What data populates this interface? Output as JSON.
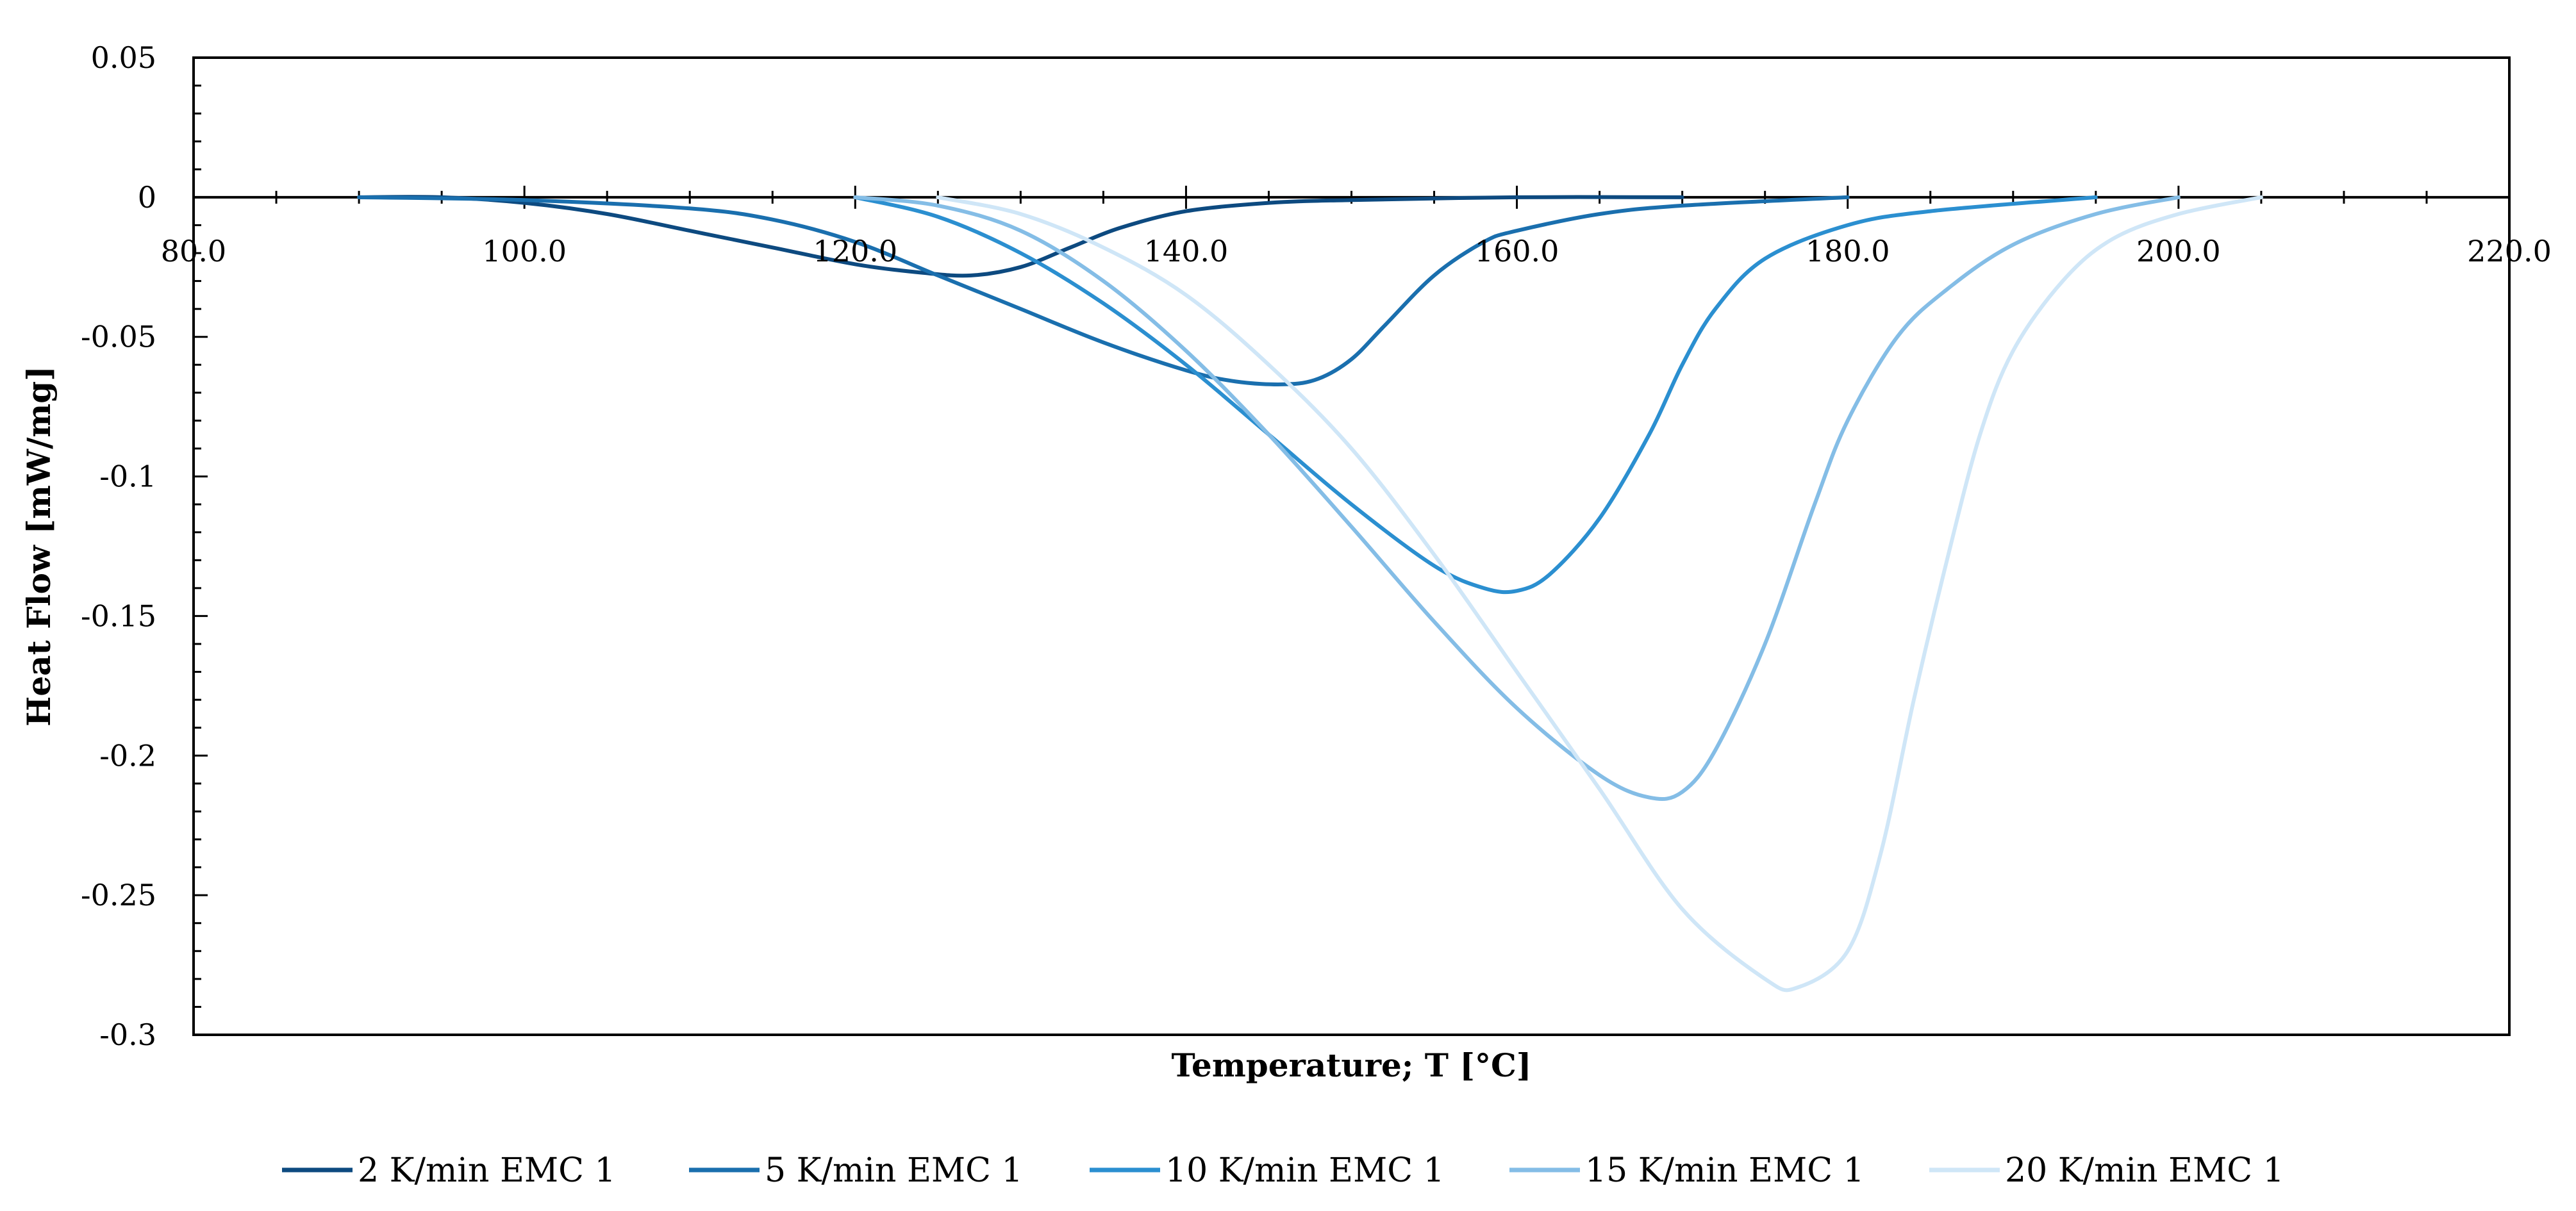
{
  "chart_data": {
    "type": "line",
    "title": "",
    "xlabel": "Temperature; T [°C]",
    "ylabel": "Heat Flow [mW/mg]",
    "xlim": [
      80,
      220
    ],
    "ylim": [
      -0.3,
      0.05
    ],
    "x_ticks": [
      80,
      100,
      120,
      140,
      160,
      180,
      200,
      220
    ],
    "x_tick_labels": [
      "80.0",
      "100.0",
      "120.0",
      "140.0",
      "160.0",
      "180.0",
      "200.0",
      "220.0"
    ],
    "y_ticks": [
      0.05,
      0,
      -0.05,
      -0.1,
      -0.15,
      -0.2,
      -0.25,
      -0.3
    ],
    "y_tick_labels": [
      "0.05",
      "0",
      "-0.05",
      "-0.1",
      "-0.15",
      "-0.2",
      "-0.25",
      "-0.3"
    ],
    "grid": false,
    "legend_position": "bottom",
    "series": [
      {
        "name": "2 K/min EMC 1",
        "color": "#0d4a80",
        "x": [
          90,
          95,
          100,
          105,
          110,
          115,
          120,
          124,
          127,
          130,
          133,
          136,
          140,
          145,
          150,
          160,
          170
        ],
        "y": [
          0,
          0,
          -0.002,
          -0.006,
          -0.012,
          -0.018,
          -0.024,
          -0.027,
          -0.028,
          -0.025,
          -0.018,
          -0.011,
          -0.005,
          -0.002,
          -0.001,
          0,
          0
        ]
      },
      {
        "name": "5 K/min EMC 1",
        "color": "#1a6fae",
        "x": [
          90,
          100,
          110,
          115,
          120,
          125,
          130,
          135,
          140,
          143,
          146,
          148,
          150,
          152,
          155,
          158,
          160,
          165,
          170,
          180
        ],
        "y": [
          0,
          -0.001,
          -0.004,
          -0.008,
          -0.016,
          -0.028,
          -0.04,
          -0.052,
          -0.062,
          -0.066,
          -0.067,
          -0.065,
          -0.058,
          -0.046,
          -0.028,
          -0.016,
          -0.012,
          -0.006,
          -0.003,
          0
        ]
      },
      {
        "name": "10 K/min EMC 1",
        "color": "#2b8fd0",
        "x": [
          120,
          125,
          130,
          135,
          140,
          145,
          150,
          155,
          158,
          160,
          162,
          165,
          168,
          170,
          172,
          175,
          180,
          185,
          195
        ],
        "y": [
          0,
          -0.007,
          -0.02,
          -0.038,
          -0.06,
          -0.085,
          -0.11,
          -0.132,
          -0.14,
          -0.141,
          -0.135,
          -0.115,
          -0.085,
          -0.06,
          -0.04,
          -0.022,
          -0.01,
          -0.005,
          0
        ]
      },
      {
        "name": "15 K/min EMC 1",
        "color": "#84bde6",
        "x": [
          120,
          125,
          130,
          135,
          140,
          145,
          150,
          155,
          160,
          165,
          168,
          170,
          172,
          175,
          178,
          180,
          183,
          186,
          190,
          195,
          200
        ],
        "y": [
          0,
          -0.003,
          -0.012,
          -0.03,
          -0.055,
          -0.085,
          -0.118,
          -0.152,
          -0.183,
          -0.207,
          -0.215,
          -0.213,
          -0.198,
          -0.16,
          -0.11,
          -0.08,
          -0.05,
          -0.033,
          -0.017,
          -0.006,
          0
        ]
      },
      {
        "name": "20 K/min EMC 1",
        "color": "#cfe6f7",
        "x": [
          125,
          130,
          135,
          140,
          145,
          150,
          155,
          160,
          165,
          170,
          175,
          177,
          180,
          182,
          184,
          186,
          188,
          190,
          193,
          196,
          200,
          205
        ],
        "y": [
          0,
          -0.006,
          -0.018,
          -0.035,
          -0.06,
          -0.09,
          -0.128,
          -0.17,
          -0.212,
          -0.255,
          -0.28,
          -0.283,
          -0.27,
          -0.235,
          -0.18,
          -0.13,
          -0.085,
          -0.055,
          -0.03,
          -0.015,
          -0.006,
          0
        ]
      }
    ]
  }
}
